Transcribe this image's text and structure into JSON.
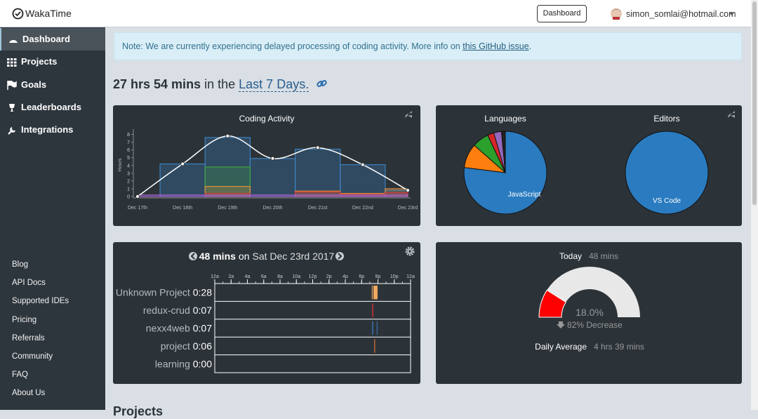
{
  "header": {
    "brand": "WakaTime",
    "button": "Dashboard",
    "user": "simon_somlai@hotmail.com"
  },
  "sidebar": {
    "nav": [
      "Dashboard",
      "Projects",
      "Goals",
      "Leaderboards",
      "Integrations"
    ],
    "links": [
      "Blog",
      "API Docs",
      "Supported IDEs",
      "Pricing",
      "Referrals",
      "Community",
      "FAQ",
      "About Us"
    ]
  },
  "notice": {
    "text": "Note: We are currently experiencing delayed processing of coding activity. More info on",
    "link": "this GitHub issue",
    "end": "."
  },
  "summary": {
    "total": "27 hrs 54 mins",
    "middle": "in the",
    "range": "Last 7 Days."
  },
  "coding_activity": {
    "type": "line",
    "title": "Coding Activity",
    "y_label": "Hours",
    "x": [
      "Dec 17th",
      "Dec 18th",
      "Dec 19th",
      "Dec 20th",
      "Dec 21st",
      "Dec 22nd",
      "Dec 23rd"
    ],
    "values": [
      0,
      4.2,
      7.8,
      4.9,
      6.3,
      4.1,
      0.8
    ],
    "line_color": "#ffffff",
    "series": [
      {
        "color": "#3c82c0",
        "values": [
          0,
          4.2,
          7.6,
          4.9,
          6.1,
          4.1,
          0.8
        ]
      },
      {
        "color": "#3ea33e",
        "values": [
          0,
          0,
          3.8,
          0,
          0,
          0,
          0
        ]
      },
      {
        "color": "#e0903a",
        "values": [
          0,
          0,
          1.3,
          0,
          0.7,
          0.4,
          1.0
        ]
      },
      {
        "color": "#d23b3b",
        "values": [
          0,
          0,
          0.4,
          0,
          0.6,
          0.3,
          0.5
        ]
      },
      {
        "color": "#a064c8",
        "values": [
          0.2,
          0.2,
          0.2,
          0.2,
          0.2,
          0.2,
          0.2
        ]
      }
    ],
    "ylim": [
      0,
      8.5
    ],
    "yticks": [
      0,
      1,
      2,
      3,
      4,
      5,
      6,
      7,
      8
    ]
  },
  "languages": {
    "type": "pie",
    "title": "Languages",
    "labels": [
      "JavaScript",
      null,
      null,
      null,
      null,
      null
    ],
    "values": [
      77,
      9.5,
      6.5,
      2.5,
      3,
      1.5
    ],
    "colors": [
      "#2a7bbf",
      "#ff7f0e",
      "#2ca02c",
      "#d62728",
      "#9467bd",
      "#222222"
    ]
  },
  "editors": {
    "type": "pie",
    "title": "Editors",
    "labels": [
      "VS Code"
    ],
    "values": [
      100
    ],
    "colors": [
      "#2a7bbf"
    ]
  },
  "daily": {
    "total": "48 mins",
    "on": "on",
    "date": "Sat Dec 23rd 2017",
    "xlim": [
      0,
      24
    ],
    "xticks": [
      {
        "value": 0,
        "label": "12a"
      },
      {
        "value": 2,
        "label": "2a"
      },
      {
        "value": 4,
        "label": "4a"
      },
      {
        "value": 6,
        "label": "6a"
      },
      {
        "value": 8,
        "label": "8a"
      },
      {
        "value": 10,
        "label": "10a"
      },
      {
        "value": 12,
        "label": "12p"
      },
      {
        "value": 14,
        "label": "2p"
      },
      {
        "value": 16,
        "label": "4p"
      },
      {
        "value": 18,
        "label": "6p"
      },
      {
        "value": 20,
        "label": "8p"
      },
      {
        "value": 22,
        "label": "10p"
      },
      {
        "value": 24,
        "label": "12a"
      }
    ],
    "projects": [
      {
        "name": "Unknown Project",
        "duration": "0:28",
        "color": "#f0a860",
        "segments": [
          [
            19.25,
            19.35
          ],
          [
            19.45,
            19.95
          ]
        ]
      },
      {
        "name": "redux-crud",
        "duration": "0:07",
        "color": "#e03030",
        "segments": [
          [
            19.3,
            19.42
          ]
        ]
      },
      {
        "name": "nexx4web",
        "duration": "0:07",
        "color": "#3a78c0",
        "segments": [
          [
            19.3,
            19.42
          ],
          [
            19.85,
            19.92
          ]
        ]
      },
      {
        "name": "project",
        "duration": "0:06",
        "color": "#e07030",
        "segments": [
          [
            19.55,
            19.65
          ]
        ]
      },
      {
        "name": "learning",
        "duration": "0:00",
        "color": "#888888",
        "segments": []
      }
    ]
  },
  "today": {
    "label": "Today",
    "time": "48 mins",
    "gauge": {
      "value": 18.0,
      "label": "18.0%",
      "range": [
        0,
        100
      ],
      "color": "#ff0000",
      "track": "#e8e8e8"
    },
    "change": "82% Decrease",
    "average_label": "Daily Average",
    "average": "4 hrs 39 mins"
  },
  "projects_heading": "Projects"
}
